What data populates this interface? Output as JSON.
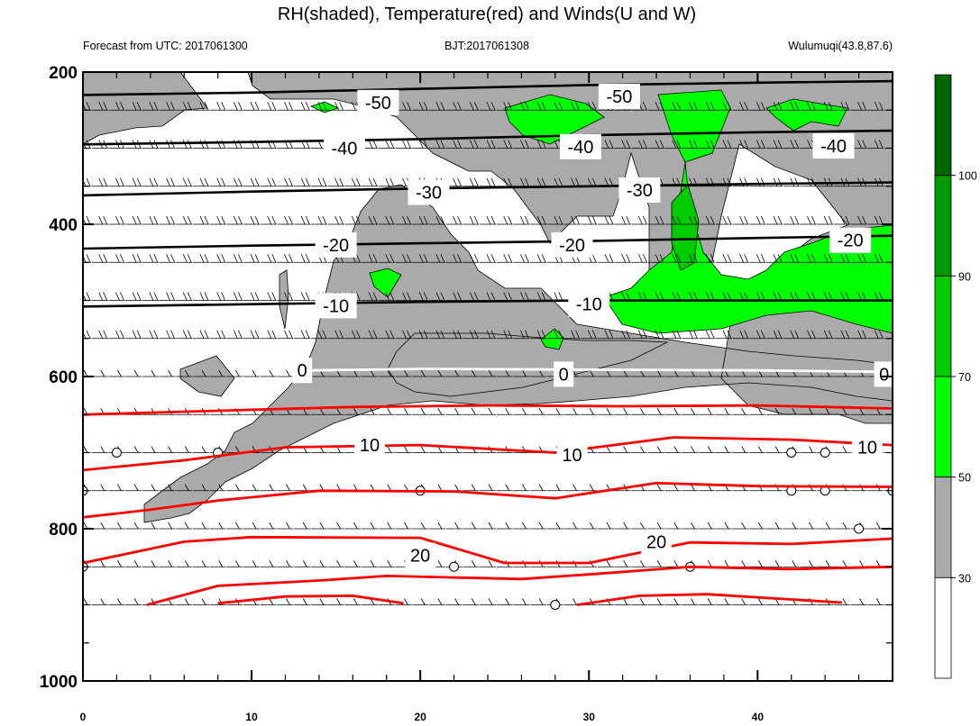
{
  "chart_data": {
    "type": "contour",
    "title": "RH(shaded), Temperature(red) and Winds(U and W)",
    "subtitle_left": "Forecast from UTC: 2017061300",
    "subtitle_center": "BJT:2017061308",
    "subtitle_right": "Wulumuqi(43.8,87.6)",
    "xlim": [
      0,
      48
    ],
    "x_ticks": [
      0,
      10,
      20,
      30,
      40
    ],
    "ylim": [
      1000,
      200
    ],
    "y_ticks": [
      200,
      400,
      600,
      800,
      1000
    ],
    "colorbar": {
      "levels": [
        30,
        50,
        70,
        90,
        100
      ],
      "colors": [
        "#ffffff",
        "#aaaaaa",
        "#00ff00",
        "#00cc00",
        "#009900",
        "#006600"
      ]
    },
    "temperature_contours": [
      {
        "value": -50,
        "label": "-50",
        "color": "#000000",
        "points": [
          [
            0,
            230
          ],
          [
            10,
            227
          ],
          [
            20,
            222
          ],
          [
            30,
            217
          ],
          [
            40,
            214
          ],
          [
            48,
            212
          ]
        ],
        "label_at": [
          [
            17.5,
            240
          ],
          [
            31.8,
            232
          ]
        ]
      },
      {
        "value": -40,
        "label": "-40",
        "color": "#000000",
        "points": [
          [
            0,
            295
          ],
          [
            10,
            292
          ],
          [
            20,
            288
          ],
          [
            30,
            283
          ],
          [
            40,
            279
          ],
          [
            48,
            277
          ]
        ],
        "label_at": [
          [
            15.5,
            300
          ],
          [
            29.5,
            298
          ],
          [
            44.5,
            297
          ]
        ]
      },
      {
        "value": -30,
        "label": "-30",
        "color": "#000000",
        "points": [
          [
            0,
            362
          ],
          [
            10,
            357
          ],
          [
            20,
            353
          ],
          [
            30,
            350
          ],
          [
            40,
            347
          ],
          [
            48,
            345
          ]
        ],
        "label_at": [
          [
            20.5,
            358
          ],
          [
            33.0,
            355
          ]
        ]
      },
      {
        "value": -20,
        "label": "-20",
        "color": "#000000",
        "points": [
          [
            0,
            432
          ],
          [
            10,
            428
          ],
          [
            20,
            425
          ],
          [
            30,
            422
          ],
          [
            40,
            418
          ],
          [
            48,
            415
          ]
        ],
        "label_at": [
          [
            15.0,
            427
          ],
          [
            29.0,
            427
          ],
          [
            45.5,
            421
          ]
        ]
      },
      {
        "value": -10,
        "label": "-10",
        "color": "#000000",
        "points": [
          [
            0,
            508
          ],
          [
            10,
            505
          ],
          [
            20,
            502
          ],
          [
            30,
            500
          ],
          [
            40,
            500
          ],
          [
            48,
            500
          ]
        ],
        "label_at": [
          [
            15.0,
            507
          ],
          [
            30.0,
            505
          ]
        ]
      },
      {
        "value": 0,
        "label": "0",
        "color": "#ffffff",
        "points": [
          [
            13.5,
            592
          ],
          [
            20,
            590
          ],
          [
            30,
            591
          ],
          [
            40,
            592
          ],
          [
            48,
            594
          ]
        ],
        "label_at": [
          [
            13.0,
            592
          ],
          [
            28.5,
            597
          ],
          [
            47.5,
            597
          ]
        ]
      },
      {
        "value": 5,
        "label": "",
        "color": "#ff0000",
        "points": [
          [
            0,
            650
          ],
          [
            8,
            645
          ],
          [
            16,
            640
          ],
          [
            24,
            638
          ],
          [
            32,
            639
          ],
          [
            40,
            638
          ],
          [
            48,
            642
          ]
        ],
        "label_at": []
      },
      {
        "value": 10,
        "label": "10",
        "color": "#ff0000",
        "points": [
          [
            0,
            723
          ],
          [
            6,
            710
          ],
          [
            12,
            693
          ],
          [
            20,
            690
          ],
          [
            28,
            700
          ],
          [
            35,
            680
          ],
          [
            42,
            683
          ],
          [
            48,
            690
          ]
        ],
        "label_at": [
          [
            17.0,
            690
          ],
          [
            29.0,
            703
          ],
          [
            46.5,
            693
          ]
        ]
      },
      {
        "value": 15,
        "label": "",
        "color": "#ff0000",
        "points": [
          [
            0,
            785
          ],
          [
            4,
            775
          ],
          [
            8,
            763
          ],
          [
            14,
            750
          ],
          [
            22,
            751
          ],
          [
            28,
            760
          ],
          [
            34,
            740
          ],
          [
            40,
            744
          ],
          [
            48,
            745
          ]
        ],
        "label_at": []
      },
      {
        "value": 20,
        "label": "20",
        "color": "#ff0000",
        "points": [
          [
            0,
            845
          ],
          [
            6,
            817
          ],
          [
            10,
            811
          ],
          [
            20,
            812
          ],
          [
            25,
            845
          ],
          [
            30,
            845
          ],
          [
            36,
            818
          ],
          [
            42,
            820
          ],
          [
            48,
            813
          ]
        ],
        "label_at": [
          [
            20.0,
            835
          ],
          [
            34.0,
            817
          ]
        ]
      },
      {
        "value": 25,
        "label": "",
        "color": "#ff0000",
        "points": [
          [
            3.8,
            900
          ],
          [
            8,
            875
          ],
          [
            14,
            868
          ],
          [
            18,
            862
          ],
          [
            26,
            866
          ],
          [
            30,
            860
          ],
          [
            36,
            850
          ],
          [
            42,
            853
          ],
          [
            48,
            850
          ]
        ],
        "label_at": []
      },
      {
        "value": 30,
        "label": "",
        "color": "#ff0000",
        "points": [
          [
            8,
            898
          ],
          [
            12,
            889
          ],
          [
            16,
            888
          ],
          [
            19,
            898
          ]
        ],
        "label_at": []
      },
      {
        "value": 31,
        "label": "",
        "color": "#ff0000",
        "points": [
          [
            29.3,
            900
          ],
          [
            33,
            888
          ],
          [
            37,
            886
          ],
          [
            45,
            897
          ]
        ],
        "label_at": []
      }
    ],
    "wind_levels": [
      250,
      300,
      350,
      400,
      450,
      500,
      550,
      600,
      650,
      700,
      750,
      800,
      850,
      900
    ],
    "calm_markers": [
      [
        2,
        700
      ],
      [
        8,
        700
      ],
      [
        42,
        700
      ],
      [
        44,
        700
      ],
      [
        0,
        750
      ],
      [
        20,
        750
      ],
      [
        42,
        750
      ],
      [
        44,
        750
      ],
      [
        48,
        750
      ],
      [
        46,
        800
      ],
      [
        0,
        850
      ],
      [
        22,
        850
      ],
      [
        36,
        850
      ],
      [
        28,
        900
      ]
    ]
  }
}
